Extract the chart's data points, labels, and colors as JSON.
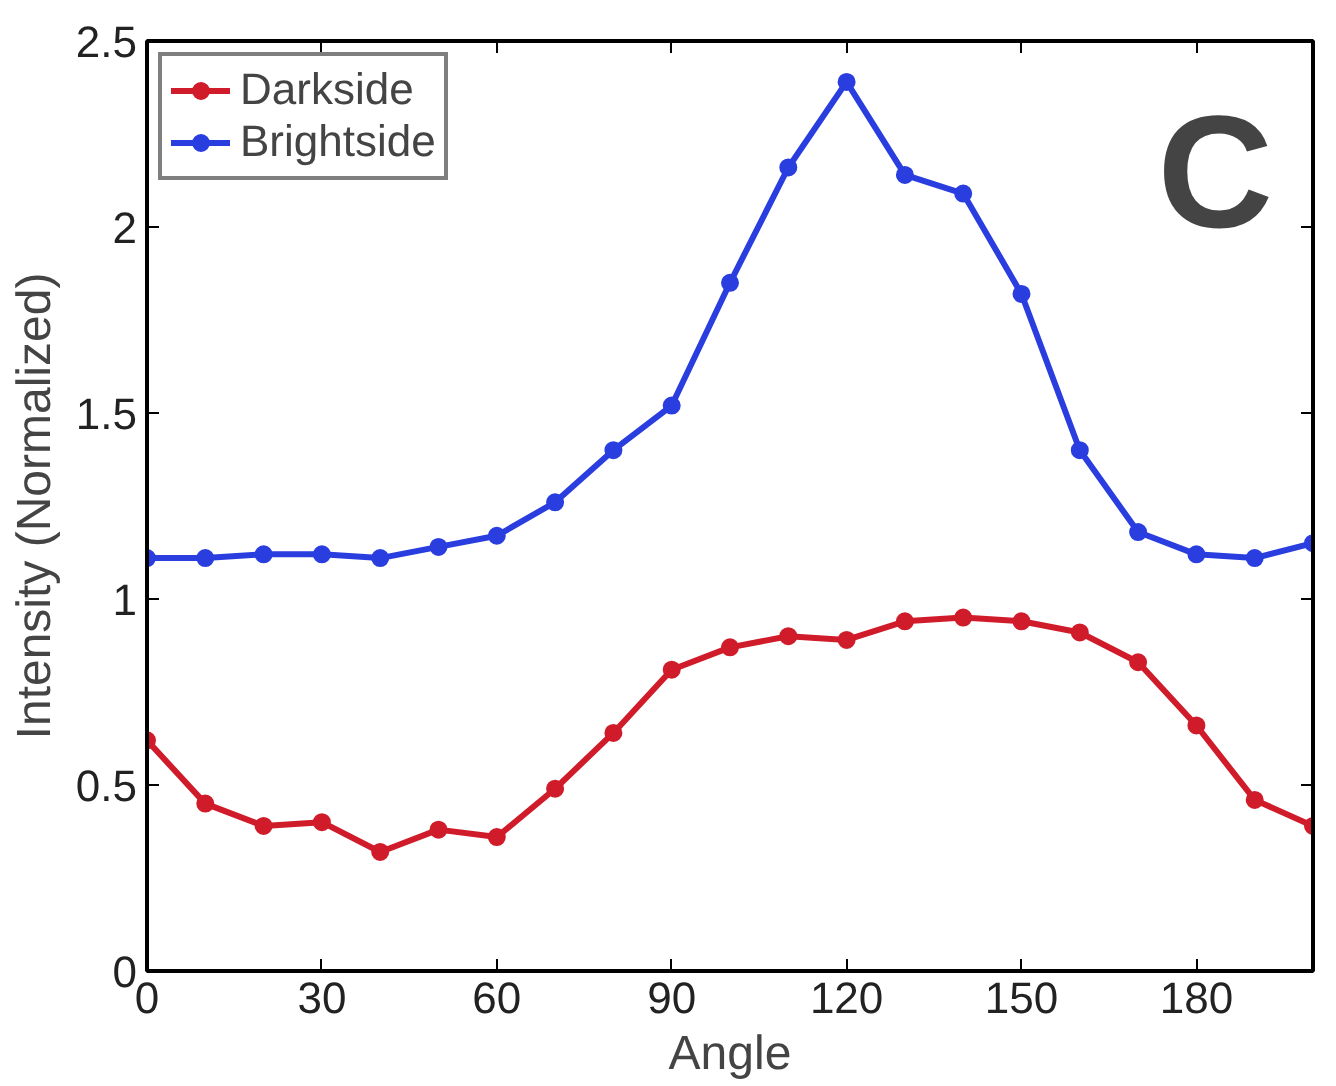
{
  "chart_data": {
    "type": "line",
    "xlabel": "Angle",
    "ylabel": "Intensity (Normalized)",
    "annotations": [
      "C"
    ],
    "x": [
      0,
      10,
      20,
      30,
      40,
      50,
      60,
      70,
      80,
      90,
      100,
      110,
      120,
      130,
      140,
      150,
      160,
      170,
      180,
      190,
      200
    ],
    "series": [
      {
        "name": "Darkside",
        "color": "#d01c2a",
        "values": [
          0.62,
          0.45,
          0.39,
          0.4,
          0.32,
          0.38,
          0.36,
          0.49,
          0.64,
          0.81,
          0.87,
          0.9,
          0.89,
          0.94,
          0.95,
          0.94,
          0.91,
          0.83,
          0.66,
          0.46,
          0.39
        ]
      },
      {
        "name": "Brightside",
        "color": "#2a3ee0",
        "values": [
          1.11,
          1.11,
          1.12,
          1.12,
          1.11,
          1.14,
          1.17,
          1.26,
          1.4,
          1.52,
          1.85,
          2.16,
          2.39,
          2.14,
          2.09,
          1.82,
          1.4,
          1.18,
          1.12,
          1.11,
          1.15
        ]
      }
    ],
    "xlim": [
      0,
      200
    ],
    "xticks": [
      0,
      30,
      60,
      90,
      120,
      150,
      180
    ],
    "ylim": [
      0,
      2.5
    ],
    "yticks": [
      0,
      {
        "value": 0.5,
        "label": "0.5"
      },
      1,
      {
        "value": 1.5,
        "label": "1.5"
      },
      2,
      {
        "value": 2.5,
        "label": "2.5"
      }
    ],
    "grid": false,
    "legend": "top left",
    "marker": "circle",
    "line_style": "solid"
  }
}
